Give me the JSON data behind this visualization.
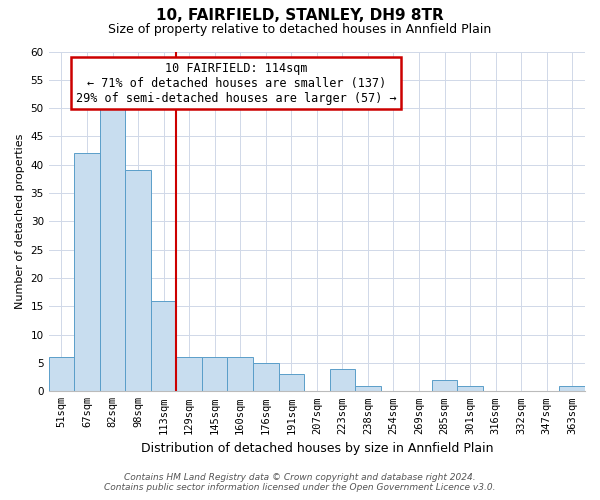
{
  "title": "10, FAIRFIELD, STANLEY, DH9 8TR",
  "subtitle": "Size of property relative to detached houses in Annfield Plain",
  "xlabel": "Distribution of detached houses by size in Annfield Plain",
  "ylabel": "Number of detached properties",
  "bin_labels": [
    "51sqm",
    "67sqm",
    "82sqm",
    "98sqm",
    "113sqm",
    "129sqm",
    "145sqm",
    "160sqm",
    "176sqm",
    "191sqm",
    "207sqm",
    "223sqm",
    "238sqm",
    "254sqm",
    "269sqm",
    "285sqm",
    "301sqm",
    "316sqm",
    "332sqm",
    "347sqm",
    "363sqm"
  ],
  "bar_heights": [
    6,
    42,
    50,
    39,
    16,
    6,
    6,
    6,
    5,
    3,
    0,
    4,
    1,
    0,
    0,
    2,
    1,
    0,
    0,
    0,
    1
  ],
  "bar_color": "#c8ddef",
  "bar_edge_color": "#5a9ec9",
  "property_bin_index": 4,
  "annotation_title": "10 FAIRFIELD: 114sqm",
  "annotation_line1": "← 71% of detached houses are smaller (137)",
  "annotation_line2": "29% of semi-detached houses are larger (57) →",
  "annotation_box_color": "#ffffff",
  "annotation_box_edge_color": "#cc0000",
  "vline_color": "#cc0000",
  "ylim": [
    0,
    60
  ],
  "yticks": [
    0,
    5,
    10,
    15,
    20,
    25,
    30,
    35,
    40,
    45,
    50,
    55,
    60
  ],
  "footer_line1": "Contains HM Land Registry data © Crown copyright and database right 2024.",
  "footer_line2": "Contains public sector information licensed under the Open Government Licence v3.0.",
  "bg_color": "#ffffff",
  "grid_color": "#d0d8e8",
  "title_fontsize": 11,
  "subtitle_fontsize": 9,
  "xlabel_fontsize": 9,
  "ylabel_fontsize": 8,
  "tick_fontsize": 7.5,
  "annotation_fontsize": 8.5,
  "footer_fontsize": 6.5
}
